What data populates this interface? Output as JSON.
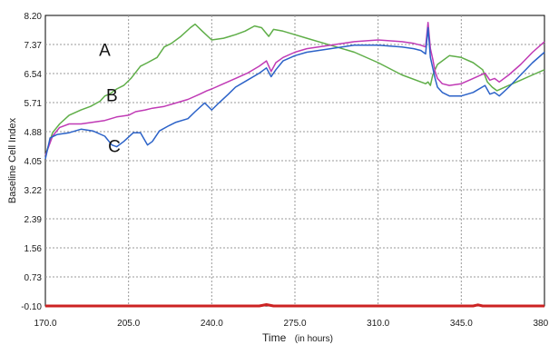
{
  "chart_data": {
    "type": "line",
    "title": "",
    "xlabel": "Time",
    "xlabel_unit": "(in hours)",
    "ylabel": "Baseline Cell Index",
    "xlim": [
      170,
      380
    ],
    "ylim": [
      -0.1,
      8.2
    ],
    "x_ticks": [
      "170.0",
      "205.0",
      "240.0",
      "275.0",
      "310.0",
      "345.0",
      "380.0"
    ],
    "y_ticks": [
      "-0.10",
      "0.73",
      "1.56",
      "2.39",
      "3.22",
      "4.05",
      "4.88",
      "5.71",
      "6.54",
      "7.37",
      "8.20"
    ],
    "grid": true,
    "annotations": [
      {
        "text": "A",
        "x": 195,
        "y": 7.05
      },
      {
        "text": "B",
        "x": 198,
        "y": 5.75
      },
      {
        "text": "C",
        "x": 199,
        "y": 4.3
      }
    ],
    "series": [
      {
        "label": "A",
        "color": "#5fae48",
        "x": [
          170,
          173,
          176,
          180,
          185,
          189,
          193,
          195,
          197,
          200,
          203,
          206,
          210,
          213,
          217,
          220,
          223,
          227,
          231,
          233,
          236,
          240,
          245,
          250,
          254,
          258,
          261,
          264,
          266,
          270,
          275,
          280,
          290,
          300,
          310,
          320,
          330,
          331,
          332,
          333,
          335,
          340,
          345,
          350,
          354,
          356,
          358,
          360,
          365,
          370,
          375,
          380
        ],
        "y": [
          4.2,
          4.85,
          5.1,
          5.35,
          5.5,
          5.6,
          5.75,
          5.9,
          5.95,
          6.1,
          6.2,
          6.4,
          6.75,
          6.85,
          7.0,
          7.3,
          7.4,
          7.6,
          7.85,
          7.95,
          7.75,
          7.5,
          7.55,
          7.65,
          7.75,
          7.9,
          7.85,
          7.6,
          7.8,
          7.75,
          7.65,
          7.55,
          7.35,
          7.15,
          6.85,
          6.5,
          6.25,
          6.3,
          6.2,
          6.5,
          6.8,
          7.05,
          7.0,
          6.85,
          6.65,
          6.3,
          6.15,
          6.05,
          6.2,
          6.35,
          6.5,
          6.65
        ]
      },
      {
        "label": "B",
        "color": "#c03ab5",
        "x": [
          170,
          173,
          176,
          180,
          185,
          190,
          195,
          200,
          205,
          208,
          212,
          215,
          220,
          225,
          230,
          235,
          238,
          240,
          245,
          250,
          255,
          260,
          263,
          265,
          267,
          270,
          275,
          280,
          290,
          300,
          310,
          320,
          325,
          328,
          330,
          331,
          332,
          333,
          334,
          335,
          337,
          340,
          345,
          350,
          355,
          357,
          359,
          361,
          365,
          370,
          375,
          380
        ],
        "y": [
          4.2,
          4.75,
          5.0,
          5.1,
          5.1,
          5.15,
          5.2,
          5.3,
          5.35,
          5.45,
          5.5,
          5.55,
          5.6,
          5.7,
          5.8,
          5.95,
          6.05,
          6.1,
          6.25,
          6.4,
          6.55,
          6.75,
          6.9,
          6.6,
          6.85,
          7.0,
          7.15,
          7.25,
          7.35,
          7.45,
          7.5,
          7.45,
          7.4,
          7.35,
          7.3,
          8.0,
          7.25,
          6.95,
          6.6,
          6.4,
          6.25,
          6.2,
          6.25,
          6.4,
          6.55,
          6.35,
          6.4,
          6.3,
          6.5,
          6.8,
          7.15,
          7.45
        ]
      },
      {
        "label": "C",
        "color": "#2b62c8",
        "x": [
          170,
          172,
          175,
          180,
          185,
          190,
          195,
          198,
          200,
          203,
          207,
          210,
          213,
          215,
          218,
          222,
          225,
          230,
          233,
          237,
          240,
          243,
          247,
          250,
          255,
          260,
          263,
          265,
          267,
          270,
          275,
          280,
          290,
          300,
          310,
          320,
          325,
          328,
          330,
          331,
          332,
          333,
          334,
          335,
          337,
          340,
          345,
          350,
          355,
          357,
          359,
          361,
          365,
          370,
          375,
          380
        ],
        "y": [
          4.1,
          4.7,
          4.8,
          4.85,
          4.95,
          4.9,
          4.75,
          4.5,
          4.45,
          4.6,
          4.85,
          4.85,
          4.5,
          4.6,
          4.9,
          5.05,
          5.15,
          5.25,
          5.45,
          5.7,
          5.5,
          5.7,
          5.95,
          6.15,
          6.35,
          6.55,
          6.7,
          6.45,
          6.65,
          6.9,
          7.05,
          7.15,
          7.25,
          7.35,
          7.35,
          7.3,
          7.25,
          7.2,
          7.1,
          7.85,
          7.0,
          6.7,
          6.4,
          6.15,
          6.0,
          5.9,
          5.9,
          6.0,
          6.2,
          5.95,
          6.0,
          5.9,
          6.15,
          6.5,
          6.85,
          7.15
        ]
      },
      {
        "label": "",
        "color": "#cc2222",
        "x": [
          170,
          200,
          230,
          260,
          263,
          266,
          290,
          320,
          350,
          352,
          354,
          380
        ],
        "y": [
          -0.1,
          -0.1,
          -0.1,
          -0.1,
          -0.06,
          -0.1,
          -0.1,
          -0.1,
          -0.1,
          -0.07,
          -0.1,
          -0.1
        ]
      }
    ]
  }
}
